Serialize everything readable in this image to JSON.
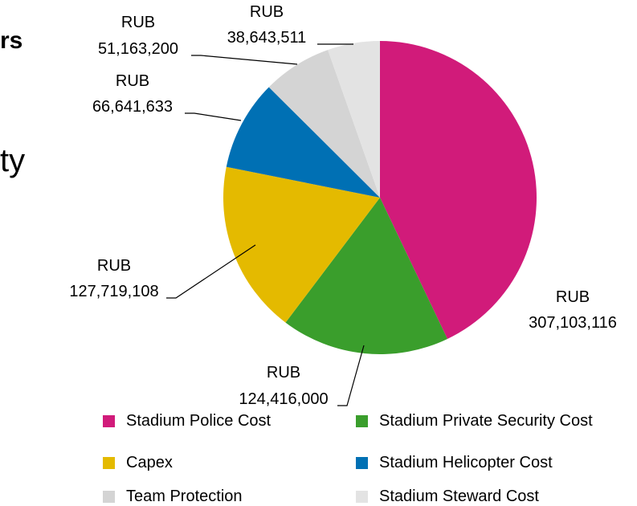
{
  "background_fragments": {
    "title_fragment": "rs",
    "body_fragment": "ty"
  },
  "chart_data": {
    "type": "pie",
    "currency": "RUB",
    "title": "",
    "slices": [
      {
        "label": "Stadium Police Cost",
        "value": 307103116,
        "value_text": "307,103,116",
        "color": "#D11B7A"
      },
      {
        "label": "Stadium Private Security Cost",
        "value": 124416000,
        "value_text": "124,416,000",
        "color": "#3A9E2C"
      },
      {
        "label": "Capex",
        "value": 127719108,
        "value_text": "127,719,108",
        "color": "#E4BA00"
      },
      {
        "label": "Stadium Helicopter Cost",
        "value": 66641633,
        "value_text": "66,641,633",
        "color": "#0070B4"
      },
      {
        "label": "Team Protection",
        "value": 51163200,
        "value_text": "51,163,200",
        "color": "#D4D4D4"
      },
      {
        "label": "Stadium Steward Cost",
        "value": 38643511,
        "value_text": "38,643,511",
        "color": "#E3E3E3"
      }
    ],
    "legend_position": "bottom"
  }
}
